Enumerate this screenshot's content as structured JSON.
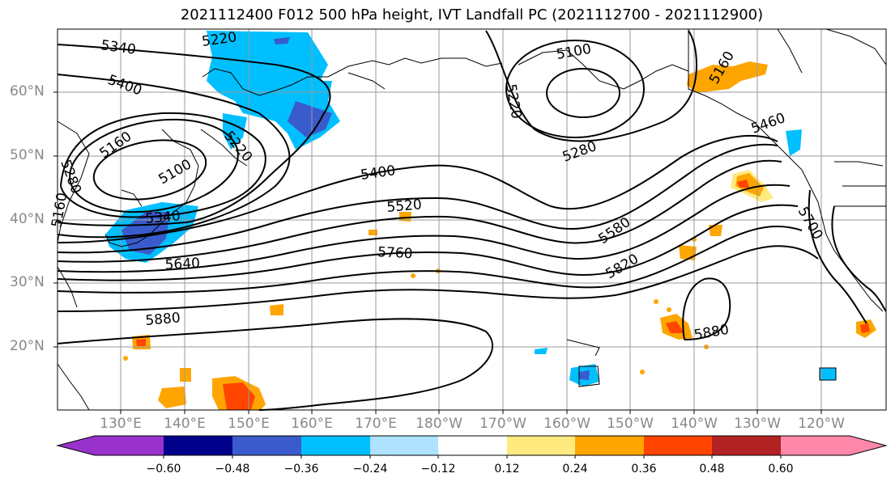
{
  "title": "2021112400 F012 500 hPa height, IVT Landfall PC (2021112700 - 2021112900)",
  "lat_labels": [
    "60°N",
    "50°N",
    "40°N",
    "30°N",
    "20°N"
  ],
  "lon_labels": [
    "130°E",
    "140°E",
    "150°E",
    "160°E",
    "170°E",
    "180°W",
    "170°W",
    "160°W",
    "150°W",
    "140°W",
    "130°W",
    "120°W"
  ],
  "contour_labels": [
    "5340",
    "5220",
    "5400",
    "5100",
    "5160",
    "5280",
    "5220",
    "5160",
    "5220",
    "5100",
    "5280",
    "5400",
    "5520",
    "5340",
    "5640",
    "5760",
    "5880",
    "5580",
    "5820",
    "5880",
    "5700",
    "5160",
    "5460"
  ],
  "colorbar": {
    "ticks": [
      "−0.60",
      "−0.48",
      "−0.36",
      "−0.24",
      "−0.12",
      "0.12",
      "0.24",
      "0.36",
      "0.48",
      "0.60"
    ],
    "colors": [
      "#9932cc",
      "#00008b",
      "#3a5bcc",
      "#00bfff",
      "#aee2ff",
      "#ffffff",
      "#ffea80",
      "#ffa500",
      "#ff4500",
      "#b22222",
      "#ff88aa"
    ]
  }
}
